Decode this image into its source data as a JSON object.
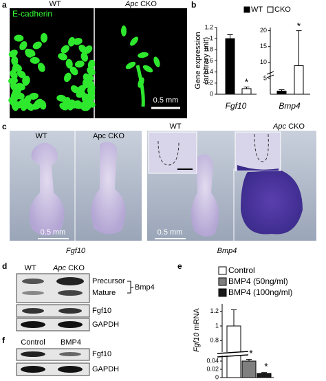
{
  "panel_a": {
    "label": "a",
    "wt": "WT",
    "cko_gene": "Apc",
    "cko_suffix": "CKO",
    "stain": "E-cadherin",
    "scale": "0.5 mm"
  },
  "panel_c": {
    "label": "c",
    "left_wt": "WT",
    "left_cko": "Apc CKO",
    "right_wt": "WT",
    "right_cko_gene": "Apc",
    "right_cko_suffix": "CKO",
    "scale_left": "0.5 mm",
    "scale_right": "0.5 mm",
    "gene_left": "Fgf10",
    "gene_right": "Bmp4"
  },
  "panel_d": {
    "label": "d",
    "wt": "WT",
    "cko_gene": "Apc",
    "cko_suffix": "CKO",
    "bands": [
      "Precursor",
      "Mature",
      "Fgf10",
      "GAPDH"
    ],
    "group": "Bmp4"
  },
  "panel_f": {
    "label": "f",
    "lanes": [
      "Control",
      "BMP4"
    ],
    "bands": [
      "Fgf10",
      "GAPDH"
    ]
  },
  "chart_data": [
    {
      "type": "bar",
      "panel_label": "b",
      "ylabel": [
        "Gene expression",
        "(arbitrary unit)"
      ],
      "categories": [
        "Fgf10",
        "Bmp4"
      ],
      "series": [
        {
          "name": "WT",
          "color": "#000000",
          "values": [
            1.0,
            1
          ],
          "errors": [
            0.07,
            0.4
          ]
        },
        {
          "name": "CKO",
          "color": "#ffffff",
          "values": [
            0.1,
            9
          ],
          "errors": [
            0.03,
            11
          ]
        }
      ],
      "axes": [
        {
          "ylim": [
            0,
            1.2
          ],
          "yticks": [
            0,
            0.2,
            0.4,
            0.6,
            0.8,
            1,
            1.2
          ]
        },
        {
          "ylim": [
            0,
            21
          ],
          "yticks": [
            5,
            10,
            15,
            20
          ]
        }
      ],
      "annotations": [
        "*",
        "*"
      ]
    },
    {
      "type": "bar",
      "panel_label": "e",
      "ylabel_gene": "Fgf10",
      "ylabel_unit": "mRNA",
      "categories": [
        "Control",
        "BMP4 (50ng/ml)",
        "BMP4 (100ng/ml)"
      ],
      "values": [
        1.0,
        0.04,
        0.01
      ],
      "errors": [
        0.22,
        0.004,
        0.002
      ],
      "colors": [
        "#ffffff",
        "#7f7f7f",
        "#1a1a1a"
      ],
      "ylim": [
        0,
        1.3
      ],
      "axis_break": [
        0.045,
        0.7
      ],
      "yticks": [
        0,
        0.02,
        0.04,
        0.8,
        1,
        1.2
      ],
      "annotations": [
        "*",
        "*"
      ]
    }
  ]
}
